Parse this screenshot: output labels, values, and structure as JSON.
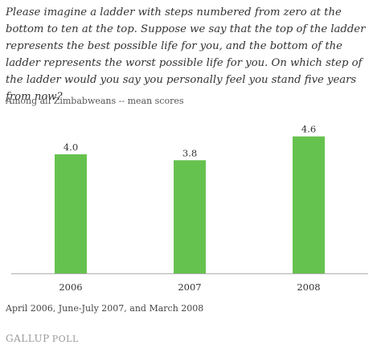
{
  "question": "Please imagine a ladder with steps numbered from zero at the bottom to ten at the top. Suppose we say that the top of the ladder represents the best possible life for you, and the bottom of the ladder represents the worst possible life for you. On which step of the ladder would you say you personally feel you stand five years from now?",
  "subtitle": "Among all Zimbabweans -- mean scores",
  "footnote": "April 2006, June-July 2007, and March 2008",
  "brand": {
    "name": "GALLUP",
    "suffix": "POLL"
  },
  "colors": {
    "bar": "#66c24f",
    "axis": "#b0b0b0",
    "text": "#333333"
  },
  "chart_data": {
    "type": "bar",
    "categories": [
      "2006",
      "2007",
      "2008"
    ],
    "values": [
      4.0,
      3.8,
      4.6
    ],
    "data_labels": [
      "4.0",
      "3.8",
      "4.6"
    ],
    "ylim": [
      0,
      5.4
    ],
    "grid": false,
    "legend": "none"
  }
}
